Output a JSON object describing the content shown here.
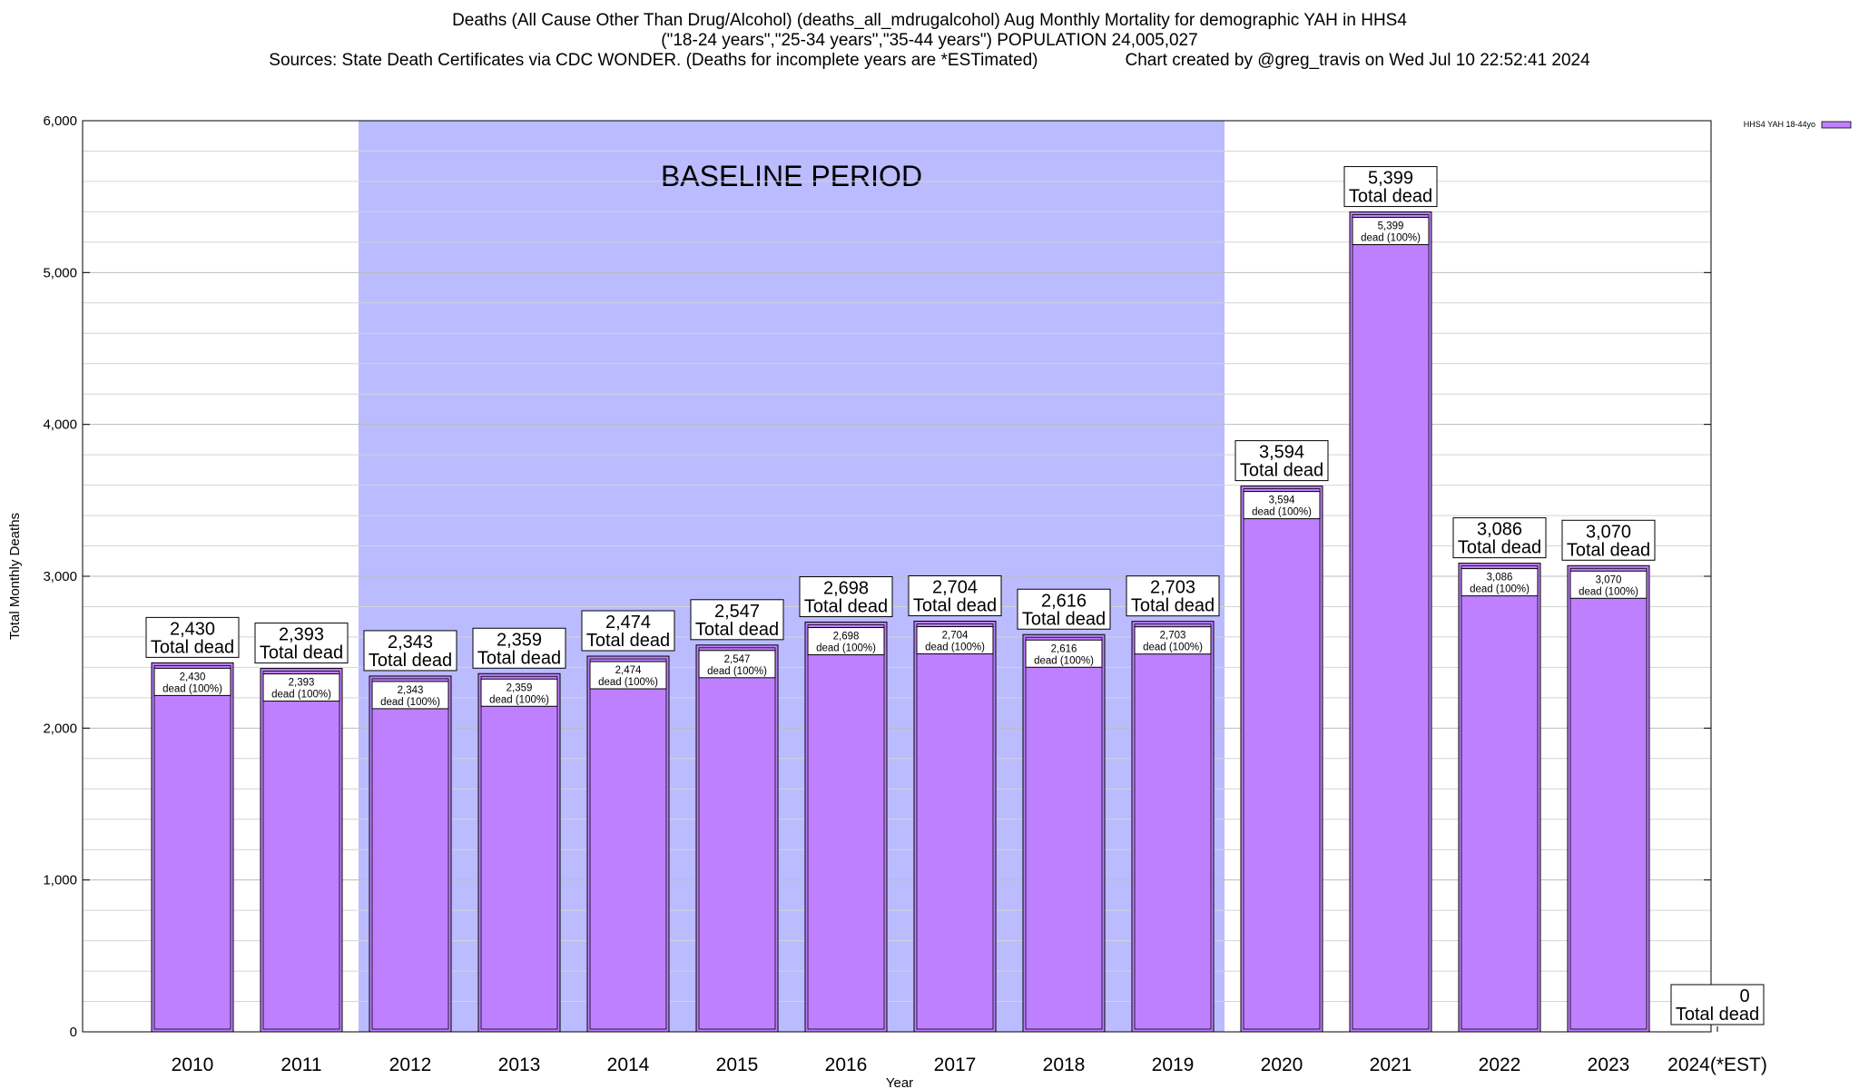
{
  "header": {
    "title_line1": "Deaths (All Cause Other Than Drug/Alcohol) (deaths_all_mdrugalcohol) Aug Monthly Mortality for demographic YAH in HHS4",
    "title_line2": "(\"18-24 years\",\"25-34 years\",\"35-44 years\") POPULATION 24,005,027",
    "sources": "Sources: State Death Certificates via CDC WONDER. (Deaths for incomplete years are *ESTimated)",
    "credit": "Chart created by @greg_travis on Wed Jul 10 22:52:41 2024"
  },
  "chart_data": {
    "type": "bar",
    "title": "Deaths (All Cause Other Than Drug/Alcohol) (deaths_all_mdrugalcohol) Aug Monthly Mortality for demographic YAH in HHS4",
    "xlabel": "Year",
    "ylabel": "Total Monthly Deaths",
    "ylim": [
      0,
      6000
    ],
    "yticks": [
      0,
      1000,
      2000,
      3000,
      4000,
      5000,
      6000
    ],
    "ytick_labels": [
      "0",
      "1,000",
      "2,000",
      "3,000",
      "4,000",
      "5,000",
      "6,000"
    ],
    "categories": [
      "2010",
      "2011",
      "2012",
      "2013",
      "2014",
      "2015",
      "2016",
      "2017",
      "2018",
      "2019",
      "2020",
      "2021",
      "2022",
      "2023",
      "2024(*EST)"
    ],
    "series": [
      {
        "name": "HHS4 YAH 18-44yo",
        "color": "#bf80ff",
        "values": [
          2430,
          2393,
          2343,
          2359,
          2474,
          2547,
          2698,
          2704,
          2616,
          2703,
          3594,
          5399,
          3086,
          3070,
          0
        ]
      }
    ],
    "value_labels": [
      "2,430",
      "2,393",
      "2,343",
      "2,359",
      "2,474",
      "2,547",
      "2,698",
      "2,704",
      "2,616",
      "2,703",
      "3,594",
      "5,399",
      "3,086",
      "3,070",
      "0"
    ],
    "total_label": "Total dead",
    "inner_label_suffix": "dead (100%)",
    "baseline": {
      "label": "BASELINE PERIOD",
      "start_category": "2012",
      "end_category": "2019",
      "color": "#bbbbff"
    },
    "legend": {
      "position": "top-right",
      "entries": [
        "HHS4 YAH 18-44yo"
      ]
    },
    "grid": true
  }
}
